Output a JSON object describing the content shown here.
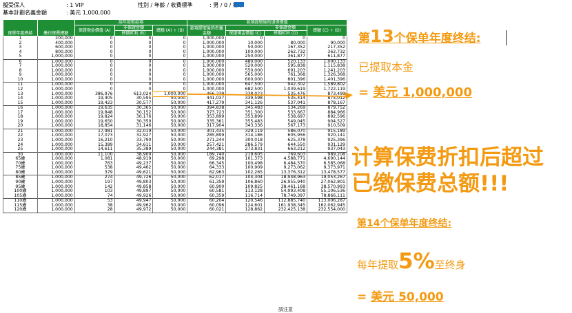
{
  "header": {
    "insured_label": "擬受保人",
    "insured_value": ": 1 VIP",
    "gender_label": "性別 / 年齡 / 收費標準",
    "gender_value": ": 男 / 0 / 標準",
    "sum_label": "基本計劃名義金額",
    "sum_value": ": 美元 1,000,000"
  },
  "chart_data": {
    "type": "table",
    "columns": {
      "year": "保單年度終結",
      "premium": "繳付保費總額",
      "group_before": "該年提取款項",
      "group_after": "款項提取後的退保價值",
      "non_guaranteed_before": "非保證金額",
      "non_guaranteed_after": "非保證金額",
      "cash_value_before": "保證現金價值 (A)",
      "terminal_bonus_before": "終期紅利 (B)",
      "total_before": "總額 (A) + (B)",
      "nominal_after": "款項提取後的名義金額",
      "cash_value_after": "保證現金價值 (C)",
      "terminal_bonus_after": "終期紅利 (D)",
      "total_after": "總額 (C) + (D)"
    },
    "groups": [
      [
        [
          "1",
          "200,000",
          "0",
          "0",
          "0",
          "1,000,000",
          "0",
          "0",
          "0"
        ],
        [
          "2",
          "400,000",
          "0",
          "0",
          "0",
          "1,000,000",
          "10,000",
          "80,000",
          "90,000"
        ],
        [
          "3",
          "600,000",
          "0",
          "0",
          "0",
          "1,000,000",
          "50,000",
          "167,352",
          "217,352"
        ],
        [
          "4",
          "800,000",
          "0",
          "0",
          "0",
          "1,000,000",
          "100,000",
          "262,732",
          "362,732"
        ],
        [
          "5",
          "1,000,000",
          "0",
          "0",
          "0",
          "1,000,000",
          "250,000",
          "361,877",
          "611,877"
        ]
      ],
      [
        [
          "6",
          "1,000,000",
          "0",
          "0",
          "0",
          "1,000,000",
          "480,000",
          "520,133",
          "1,000,133"
        ],
        [
          "7",
          "1,000,000",
          "0",
          "0",
          "0",
          "1,000,000",
          "520,000",
          "595,838",
          "1,115,838"
        ],
        [
          "8",
          "1,000,000",
          "0",
          "0",
          "0",
          "1,000,000",
          "550,000",
          "691,203",
          "1,241,203"
        ],
        [
          "9",
          "1,000,000",
          "0",
          "0",
          "0",
          "1,000,000",
          "565,000",
          "761,368",
          "1,326,368"
        ],
        [
          "10",
          "1,000,000",
          "0",
          "0",
          "0",
          "1,000,000",
          "600,000",
          "801,396",
          "1,401,396"
        ]
      ],
      [
        [
          "11",
          "1,000,000",
          "0",
          "0",
          "0",
          "1,000,000",
          "647,500",
          "942,302",
          "1,589,802"
        ],
        [
          "12",
          "1,000,000",
          "0",
          "0",
          "0",
          "1,000,000",
          "682,500",
          "1,039,619",
          "1,722,119"
        ],
        [
          "13",
          "1,000,000",
          "386,976",
          "613,024",
          "1,000,000",
          "466,239",
          "338,023",
          "535,476",
          "873,499"
        ],
        [
          "14",
          "1,000,000",
          "19,405",
          "30,595",
          "50,000",
          "441,037",
          "339,598",
          "535,414",
          "875,012"
        ],
        [
          "15",
          "1,000,000",
          "19,423",
          "30,577",
          "50,000",
          "417,279",
          "341,126",
          "537,041",
          "878,167"
        ]
      ],
      [
        [
          "16",
          "1,000,000",
          "19,635",
          "30,365",
          "50,000",
          "394,838",
          "345,483",
          "534,269",
          "879,752"
        ],
        [
          "17",
          "1,000,000",
          "19,848",
          "30,152",
          "50,000",
          "373,723",
          "351,300",
          "533,667",
          "884,966"
        ],
        [
          "18",
          "1,000,000",
          "19,824",
          "30,176",
          "50,000",
          "353,899",
          "353,899",
          "538,697",
          "892,596"
        ],
        [
          "19",
          "1,000,000",
          "19,650",
          "30,350",
          "50,000",
          "335,361",
          "355,483",
          "549,045",
          "904,527"
        ],
        [
          "20",
          "1,000,000",
          "18,854",
          "31,146",
          "50,000",
          "317,904",
          "343,336",
          "567,173",
          "910,509"
        ]
      ],
      [
        [
          "21",
          "1,000,000",
          "17,981",
          "32,019",
          "50,000",
          "301,435",
          "329,119",
          "586,070",
          "915,189"
        ],
        [
          "22",
          "1,000,000",
          "17,073",
          "32,927",
          "50,000",
          "285,899",
          "314,186",
          "605,956",
          "920,141"
        ],
        [
          "23",
          "1,000,000",
          "16,210",
          "33,790",
          "50,000",
          "271,244",
          "300,018",
          "625,378",
          "925,396"
        ],
        [
          "24",
          "1,000,000",
          "15,389",
          "34,611",
          "50,000",
          "257,421",
          "286,579",
          "644,550",
          "931,129"
        ],
        [
          "25",
          "1,000,000",
          "14,611",
          "35,389",
          "50,000",
          "244,381",
          "273,831",
          "663,212",
          "937,043"
        ]
      ],
      [
        [
          "30",
          "1,000,000",
          "11,100",
          "38,900",
          "50,000",
          "189,740",
          "219,605",
          "769,603",
          "989,208"
        ],
        [
          "65歲",
          "1,000,000",
          "1,081",
          "48,919",
          "50,000",
          "69,298",
          "101,373",
          "4,588,771",
          "4,690,144"
        ],
        [
          "70歲",
          "1,000,000",
          "763",
          "49,237",
          "50,000",
          "66,345",
          "100,498",
          "6,484,570",
          "6,585,068"
        ],
        [
          "75歲",
          "1,000,000",
          "538",
          "49,462",
          "50,000",
          "64,333",
          "100,909",
          "9,273,062",
          "9,373,971"
        ],
        [
          "80歲",
          "1,000,000",
          "379",
          "49,621",
          "50,000",
          "62,963",
          "102,265",
          "13,376,312",
          "13,478,577"
        ]
      ],
      [
        [
          "85歲",
          "1,000,000",
          "274",
          "49,726",
          "50,000",
          "62,017",
          "104,304",
          "18,948,963",
          "19,053,267"
        ],
        [
          "90歲",
          "1,000,000",
          "197",
          "49,803",
          "50,000",
          "61,359",
          "106,860",
          "26,955,940",
          "27,062,801"
        ],
        [
          "95歲",
          "1,000,000",
          "142",
          "49,858",
          "50,000",
          "60,900",
          "109,825",
          "38,461,168",
          "38,570,993"
        ],
        [
          "100歲",
          "1,000,000",
          "103",
          "49,897",
          "50,000",
          "60,581",
          "113,128",
          "54,993,408",
          "55,106,536"
        ],
        [
          "105歲",
          "1,000,000",
          "74",
          "49,926",
          "50,000",
          "60,359",
          "116,714",
          "78,749,397",
          "78,866,111"
        ]
      ],
      [
        [
          "110歲",
          "1,000,000",
          "53",
          "49,947",
          "50,000",
          "60,204",
          "120,546",
          "112,885,740",
          "113,006,287"
        ],
        [
          "115歲",
          "1,000,000",
          "38",
          "49,962",
          "50,000",
          "60,096",
          "124,601",
          "161,938,345",
          "162,062,945"
        ],
        [
          "120歲",
          "1,000,000",
          "28",
          "49,972",
          "50,000",
          "60,021",
          "128,862",
          "232,425,138",
          "232,554,000"
        ]
      ]
    ]
  },
  "annotations": {
    "year13_prefix": "第",
    "year13_number": "13",
    "year13_suffix": "个保单年度终结:",
    "withdraw_principal": "已提取本金",
    "eq1_prefix": "= ",
    "eq1_value": "美元 1,000,000",
    "headline_line1": "计算保费折扣后超过",
    "headline_line2": "已缴保费总额!!!",
    "year14_label": "第14个保单年度终结:",
    "yearly_prefix": "每年提取",
    "yearly_percent": "5%",
    "yearly_suffix": "至终身",
    "eq2_prefix": "= ",
    "eq2_value": "美元 50,000"
  },
  "footnote": "請注意",
  "colors": {
    "header_green": "#1f8f35",
    "accent_orange": "#f39a12"
  }
}
